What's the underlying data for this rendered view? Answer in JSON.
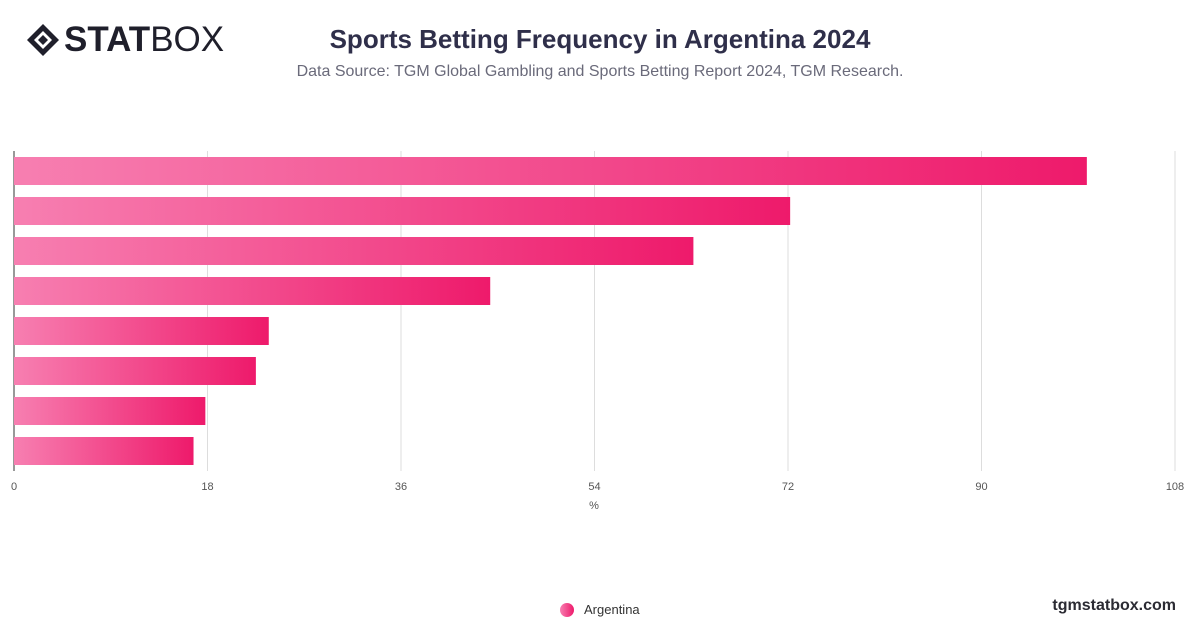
{
  "brand": {
    "logo_stat": "STAT",
    "logo_box": "BOX",
    "footer_url": "tgmstatbox.com"
  },
  "header": {
    "title": "Sports Betting Frequency in Argentina 2024",
    "subtitle": "Data Source: TGM Global Gambling and Sports Betting Report 2024, TGM Research."
  },
  "colors": {
    "bar_start": "#f77fb1",
    "bar_end": "#ee1a6b",
    "grid": "#dddddd",
    "axis": "#333333"
  },
  "chart_data": {
    "type": "bar",
    "orientation": "horizontal",
    "categories": [
      "",
      "",
      "",
      "",
      "",
      "",
      "",
      ""
    ],
    "series": [
      {
        "name": "Argentina",
        "values": [
          99.8,
          72.2,
          63.2,
          44.3,
          23.7,
          22.5,
          17.8,
          16.7
        ]
      }
    ],
    "xlabel": "%",
    "ylabel": "",
    "xlim": [
      0,
      108
    ],
    "xticks": [
      0,
      18,
      36,
      54,
      72,
      90,
      108
    ],
    "grid": true,
    "legend": "bottom-center"
  }
}
